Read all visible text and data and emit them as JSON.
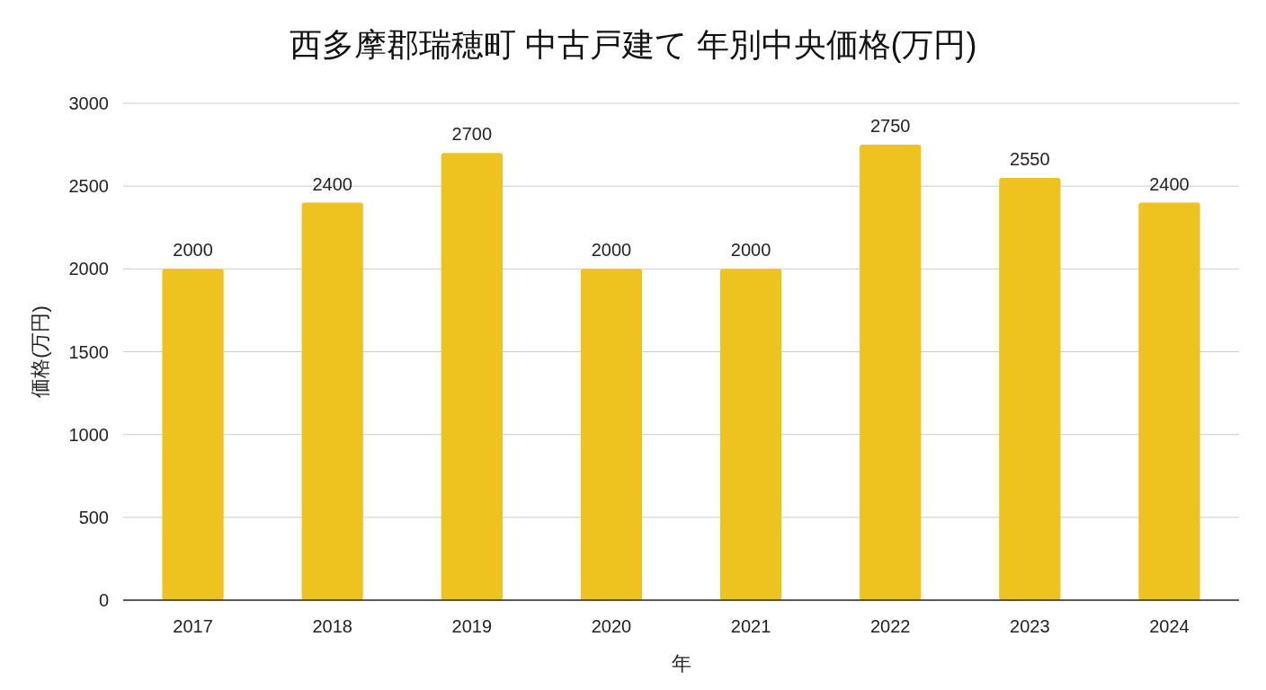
{
  "chart_data": {
    "type": "bar",
    "title": "西多摩郡瑞穂町 中古戸建て 年別中央価格(万円)",
    "xlabel": "年",
    "ylabel": "価格(万円)",
    "categories": [
      "2017",
      "2018",
      "2019",
      "2020",
      "2021",
      "2022",
      "2023",
      "2024"
    ],
    "values": [
      2000,
      2400,
      2700,
      2000,
      2000,
      2750,
      2550,
      2400
    ],
    "color": "#efc31f",
    "ylim": [
      0,
      3000
    ],
    "yticks": [
      0,
      500,
      1000,
      1500,
      2000,
      2500,
      3000
    ],
    "grid": "y",
    "data_labels": true
  }
}
